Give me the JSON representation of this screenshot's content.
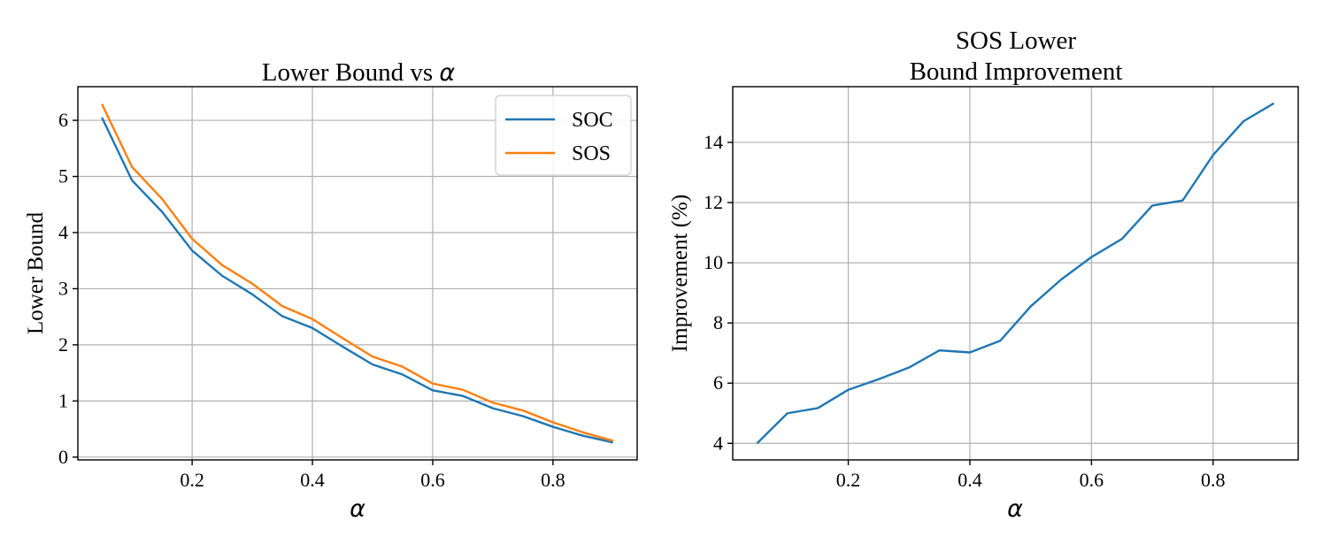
{
  "chart_data": [
    {
      "type": "line",
      "title": "Lower Bound vs ",
      "title_symbol": "α",
      "xlabel": "α",
      "ylabel": "Lower Bound",
      "xlim": [
        0.01,
        0.94
      ],
      "ylim": [
        -0.05,
        6.6
      ],
      "xticks": [
        0.2,
        0.4,
        0.6,
        0.8
      ],
      "xtick_labels": [
        "0.2",
        "0.4",
        "0.6",
        "0.8"
      ],
      "yticks": [
        0,
        1,
        2,
        3,
        4,
        5,
        6
      ],
      "ytick_labels": [
        "0",
        "1",
        "2",
        "3",
        "4",
        "5",
        "6"
      ],
      "grid": true,
      "legend_position": "top-right",
      "x": [
        0.05,
        0.1,
        0.15,
        0.2,
        0.25,
        0.3,
        0.35,
        0.4,
        0.45,
        0.5,
        0.55,
        0.6,
        0.65,
        0.7,
        0.75,
        0.8,
        0.85,
        0.9
      ],
      "series": [
        {
          "name": "SOC",
          "color": "#1f77b4",
          "values": [
            6.05,
            4.93,
            4.37,
            3.68,
            3.23,
            2.9,
            2.51,
            2.3,
            1.97,
            1.65,
            1.47,
            1.19,
            1.09,
            0.87,
            0.73,
            0.54,
            0.38,
            0.26
          ]
        },
        {
          "name": "SOS",
          "color": "#ff7f0e",
          "values": [
            6.29,
            5.17,
            4.6,
            3.89,
            3.42,
            3.09,
            2.69,
            2.46,
            2.12,
            1.79,
            1.61,
            1.31,
            1.2,
            0.97,
            0.83,
            0.62,
            0.44,
            0.29
          ]
        }
      ]
    },
    {
      "type": "line",
      "title_lines": [
        "SOS Lower",
        "Bound Improvement"
      ],
      "xlabel": "α",
      "ylabel": "Improvement (%)",
      "xlim": [
        0.01,
        0.94
      ],
      "ylim": [
        3.45,
        15.85
      ],
      "xticks": [
        0.2,
        0.4,
        0.6,
        0.8
      ],
      "xtick_labels": [
        "0.2",
        "0.4",
        "0.6",
        "0.8"
      ],
      "yticks": [
        4,
        6,
        8,
        10,
        12,
        14
      ],
      "ytick_labels": [
        "4",
        "6",
        "8",
        "10",
        "12",
        "14"
      ],
      "grid": true,
      "x": [
        0.05,
        0.1,
        0.15,
        0.2,
        0.25,
        0.3,
        0.35,
        0.4,
        0.45,
        0.5,
        0.55,
        0.6,
        0.65,
        0.7,
        0.75,
        0.8,
        0.85,
        0.9
      ],
      "series": [
        {
          "color": "#1f77b4",
          "values": [
            4.0,
            5.0,
            5.17,
            5.78,
            6.13,
            6.52,
            7.09,
            7.02,
            7.41,
            8.55,
            9.44,
            10.19,
            10.79,
            11.9,
            12.07,
            13.58,
            14.7,
            15.3
          ]
        }
      ]
    }
  ]
}
